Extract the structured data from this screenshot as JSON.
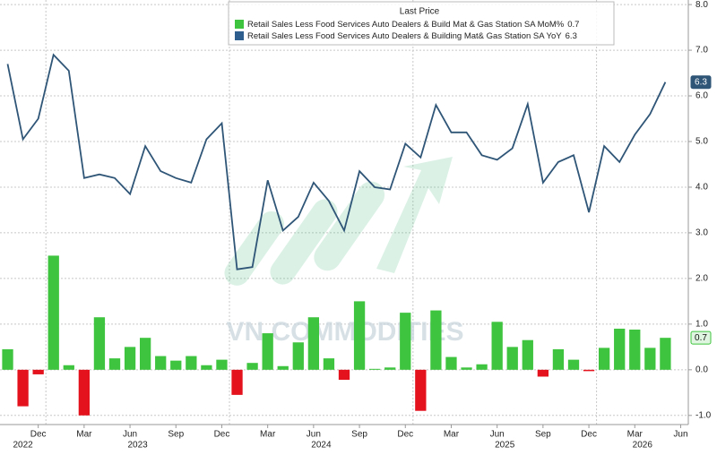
{
  "chart_data": {
    "type": "bar-line",
    "legend_title": "Last Price",
    "watermark": "VN COMMODITIES",
    "categories": [
      null,
      null,
      "Dec",
      null,
      null,
      "Mar",
      null,
      null,
      "Jun",
      null,
      null,
      "Sep",
      null,
      null,
      "Dec",
      null,
      null,
      "Mar",
      null,
      null,
      "Jun",
      null,
      null,
      "Sep",
      null,
      null,
      "Dec",
      null,
      null,
      "Mar",
      null,
      null,
      "Jun",
      null,
      null,
      "Sep",
      null,
      null,
      "Dec",
      null,
      null,
      "Mar",
      null,
      null,
      "Jun"
    ],
    "years": [
      "2022",
      "2023",
      "2024",
      "2025",
      "2026"
    ],
    "series": [
      {
        "name": "Retail Sales Less Food Services Auto Dealers & Build Mat & Gas Station SA MoM%",
        "type": "bar",
        "color": "#3fc43f",
        "negative_color": "#e3121c",
        "values": [
          0.45,
          -0.8,
          -0.1,
          2.5,
          0.1,
          -1.0,
          1.15,
          0.25,
          0.5,
          0.7,
          0.3,
          0.2,
          0.3,
          0.1,
          0.22,
          -0.55,
          0.15,
          0.8,
          0.08,
          0.6,
          1.15,
          0.25,
          -0.22,
          1.5,
          0.02,
          0.05,
          1.25,
          -0.9,
          1.3,
          0.28,
          0.05,
          0.12,
          1.05,
          0.5,
          0.65,
          -0.15,
          0.45,
          0.22,
          -0.03,
          0.48,
          0.9,
          0.88,
          0.48,
          0.7,
          null
        ]
      },
      {
        "name": "Retail Sales Less Food Services Auto Dealers & Building Mat& Gas Station SA YoY",
        "type": "line",
        "color": "#2f5577",
        "values": [
          6.7,
          5.05,
          5.5,
          6.9,
          6.55,
          4.2,
          4.28,
          4.2,
          3.85,
          4.9,
          4.35,
          4.2,
          4.1,
          5.05,
          5.4,
          2.2,
          2.25,
          4.15,
          3.05,
          3.35,
          4.1,
          3.7,
          3.05,
          4.35,
          4.0,
          3.95,
          4.95,
          4.65,
          5.8,
          5.2,
          5.2,
          4.7,
          4.6,
          4.85,
          5.82,
          4.1,
          4.55,
          4.7,
          3.45,
          4.9,
          4.55,
          5.15,
          5.6,
          6.3,
          null
        ]
      }
    ],
    "ylim": [
      -1.2,
      8.1
    ],
    "yticks": [
      {
        "value": -1,
        "label": "-1.0"
      },
      {
        "value": 0,
        "label": "0.0"
      },
      {
        "value": 1,
        "label": "1.0"
      },
      {
        "value": 2,
        "label": "2.0"
      },
      {
        "value": 3,
        "label": "3.0"
      },
      {
        "value": 4,
        "label": "4.0"
      },
      {
        "value": 5,
        "label": "5.0"
      },
      {
        "value": 6,
        "label": "6.0"
      },
      {
        "value": 7,
        "label": "7.0"
      },
      {
        "value": 8,
        "label": "8.0"
      }
    ],
    "grid": true
  }
}
